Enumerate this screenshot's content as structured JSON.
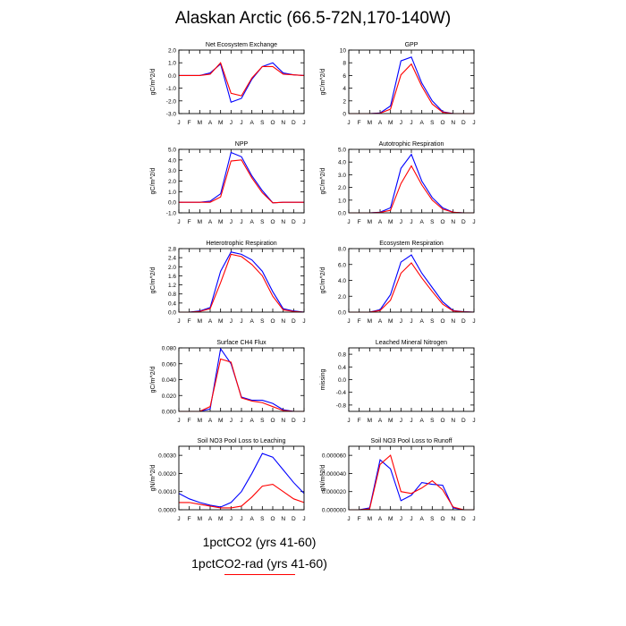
{
  "title": "Alaskan Arctic (66.5-72N,170-140W)",
  "months": [
    "J",
    "F",
    "M",
    "A",
    "M",
    "J",
    "J",
    "A",
    "S",
    "O",
    "N",
    "D",
    "J"
  ],
  "colors": {
    "series1": "#0000ff",
    "series2": "#ff0000"
  },
  "legend": [
    "1pctCO2 (yrs 41-60)",
    "1pctCO2-rad (yrs 41-60)"
  ],
  "chart_data": [
    {
      "type": "line",
      "title": "Net Ecosystem Exchange",
      "ylabel": "gC/m^2/d",
      "ylim": [
        -3.0,
        2.0
      ],
      "yticks": [
        2.0,
        1.0,
        0.0,
        -1.0,
        -2.0,
        -3.0
      ],
      "ytick_labels": [
        "2.0",
        "1.0",
        "0.0",
        "-1.0",
        "-2.0",
        "-3.0"
      ],
      "series": [
        {
          "name": "1pctCO2 (yrs 41-60)",
          "values": [
            0.0,
            0.0,
            0.0,
            0.2,
            0.9,
            -2.1,
            -1.8,
            -0.3,
            0.7,
            1.0,
            0.2,
            0.05,
            0.0
          ]
        },
        {
          "name": "1pctCO2-rad (yrs 41-60)",
          "values": [
            0.0,
            0.0,
            0.0,
            0.1,
            1.0,
            -1.4,
            -1.6,
            -0.2,
            0.7,
            0.7,
            0.1,
            0.05,
            0.0
          ]
        }
      ]
    },
    {
      "type": "line",
      "title": "GPP",
      "ylabel": "gC/m^2/d",
      "ylim": [
        0,
        10
      ],
      "yticks": [
        0,
        2,
        4,
        6,
        8,
        10
      ],
      "ytick_labels": [
        "0",
        "2",
        "4",
        "6",
        "8",
        "10"
      ],
      "series": [
        {
          "name": "1pctCO2 (yrs 41-60)",
          "values": [
            0,
            0,
            0,
            0.1,
            1.2,
            8.3,
            8.9,
            4.8,
            2.0,
            0.3,
            0,
            0,
            0
          ]
        },
        {
          "name": "1pctCO2-rad (yrs 41-60)",
          "values": [
            0,
            0,
            0,
            0.05,
            0.7,
            6.1,
            7.8,
            4.3,
            1.5,
            0.2,
            0,
            0,
            0
          ]
        }
      ]
    },
    {
      "type": "line",
      "title": "NPP",
      "ylabel": "gC/m^2/d",
      "ylim": [
        -1.0,
        5.0
      ],
      "yticks": [
        5.0,
        4.0,
        3.0,
        2.0,
        1.0,
        0.0,
        -1.0
      ],
      "ytick_labels": [
        "5.0",
        "4.0",
        "3.0",
        "2.0",
        "1.0",
        "0.0",
        "-1.0"
      ],
      "series": [
        {
          "name": "1pctCO2 (yrs 41-60)",
          "values": [
            0,
            0,
            0,
            0.1,
            0.8,
            4.7,
            4.3,
            2.5,
            1.1,
            -0.05,
            0,
            0,
            0
          ]
        },
        {
          "name": "1pctCO2-rad (yrs 41-60)",
          "values": [
            0,
            0,
            0,
            0.0,
            0.5,
            3.9,
            4.0,
            2.3,
            0.9,
            -0.05,
            0,
            0,
            0
          ]
        }
      ]
    },
    {
      "type": "line",
      "title": "Autotrophic Respiration",
      "ylabel": "gC/m^2/d",
      "ylim": [
        0,
        5.0
      ],
      "yticks": [
        0.0,
        1.0,
        2.0,
        3.0,
        4.0,
        5.0
      ],
      "ytick_labels": [
        "0.0",
        "1.0",
        "2.0",
        "3.0",
        "4.0",
        "5.0"
      ],
      "series": [
        {
          "name": "1pctCO2 (yrs 41-60)",
          "values": [
            0,
            0,
            0,
            0.05,
            0.4,
            3.5,
            4.6,
            2.5,
            1.2,
            0.4,
            0.05,
            0,
            0
          ]
        },
        {
          "name": "1pctCO2-rad (yrs 41-60)",
          "values": [
            0,
            0,
            0,
            0.03,
            0.2,
            2.3,
            3.7,
            2.2,
            1.0,
            0.3,
            0.05,
            0,
            0
          ]
        }
      ]
    },
    {
      "type": "line",
      "title": "Heterotrophic Respiration",
      "ylabel": "gC/m^2/d",
      "ylim": [
        0,
        2.8
      ],
      "yticks": [
        0.0,
        0.4,
        0.8,
        1.2,
        1.6,
        2.0,
        2.4,
        2.8
      ],
      "ytick_labels": [
        "0.0",
        "0.4",
        "0.8",
        "1.2",
        "1.6",
        "2.0",
        "2.4",
        "2.8"
      ],
      "series": [
        {
          "name": "1pctCO2 (yrs 41-60)",
          "values": [
            0.0,
            0.0,
            0.05,
            0.2,
            1.8,
            2.65,
            2.55,
            2.3,
            1.8,
            0.9,
            0.15,
            0.05,
            0.0
          ]
        },
        {
          "name": "1pctCO2-rad (yrs 41-60)",
          "values": [
            0.0,
            0.0,
            0.03,
            0.15,
            1.3,
            2.55,
            2.45,
            2.1,
            1.6,
            0.7,
            0.1,
            0.03,
            0.0
          ]
        }
      ]
    },
    {
      "type": "line",
      "title": "Ecosystem Respiration",
      "ylabel": "gC/m^2/d",
      "ylim": [
        0,
        8.0
      ],
      "yticks": [
        0.0,
        2.0,
        4.0,
        6.0,
        8.0
      ],
      "ytick_labels": [
        "0.0",
        "2.0",
        "4.0",
        "6.0",
        "8.0"
      ],
      "series": [
        {
          "name": "1pctCO2 (yrs 41-60)",
          "values": [
            0,
            0,
            0,
            0.3,
            2.2,
            6.3,
            7.2,
            4.9,
            3.1,
            1.3,
            0.2,
            0.05,
            0
          ]
        },
        {
          "name": "1pctCO2-rad (yrs 41-60)",
          "values": [
            0,
            0,
            0,
            0.2,
            1.5,
            4.9,
            6.2,
            4.3,
            2.6,
            1.0,
            0.15,
            0.03,
            0
          ]
        }
      ]
    },
    {
      "type": "line",
      "title": "Surface CH4 Flux",
      "ylabel": "gC/m^2/d",
      "ylim": [
        0,
        0.08
      ],
      "yticks": [
        0.0,
        0.02,
        0.04,
        0.06,
        0.08
      ],
      "ytick_labels": [
        "0.000",
        "0.020",
        "0.040",
        "0.060",
        "0.080"
      ],
      "series": [
        {
          "name": "1pctCO2 (yrs 41-60)",
          "values": [
            0,
            0,
            0,
            0.003,
            0.079,
            0.06,
            0.018,
            0.014,
            0.014,
            0.01,
            0.002,
            0,
            0
          ]
        },
        {
          "name": "1pctCO2-rad (yrs 41-60)",
          "values": [
            0,
            0,
            0,
            0.006,
            0.066,
            0.062,
            0.017,
            0.013,
            0.011,
            0.006,
            0.001,
            0,
            0
          ]
        }
      ]
    },
    {
      "type": "line",
      "title": "Leached Mineral Nitrogen",
      "ylabel": "missing",
      "ylim": [
        -1.0,
        1.0
      ],
      "yticks": [
        0.8,
        0.4,
        0.0,
        -0.4,
        -0.8
      ],
      "ytick_labels": [
        "0.8",
        "0.4",
        "0.0",
        "-0.4",
        "-0.8"
      ],
      "series": []
    },
    {
      "type": "line",
      "title": "Soil NO3 Pool Loss to Leaching",
      "ylabel": "gN/m^2/d",
      "ylim": [
        0,
        0.0035
      ],
      "yticks": [
        0.0,
        0.001,
        0.002,
        0.003
      ],
      "ytick_labels": [
        "0.0000",
        "0.0010",
        "0.0020",
        "0.0030"
      ],
      "series": [
        {
          "name": "1pctCO2 (yrs 41-60)",
          "values": [
            0.0009,
            0.0006,
            0.0004,
            0.00025,
            0.00015,
            0.0004,
            0.001,
            0.002,
            0.0031,
            0.0029,
            0.0022,
            0.0015,
            0.0009
          ]
        },
        {
          "name": "1pctCO2-rad (yrs 41-60)",
          "values": [
            0.0004,
            0.0004,
            0.0003,
            0.0002,
            0.0001,
            0.0001,
            0.0002,
            0.0007,
            0.0013,
            0.0014,
            0.001,
            0.0006,
            0.0004
          ]
        }
      ]
    },
    {
      "type": "line",
      "title": "Soil NO3 Pool Loss to Runoff",
      "ylabel": "gN/m^2/d",
      "ylim": [
        0,
        7e-05
      ],
      "yticks": [
        0.0,
        2e-05,
        4e-05,
        6e-05
      ],
      "ytick_labels": [
        "0.000000",
        "0.000020",
        "0.000040",
        "0.000060"
      ],
      "series": [
        {
          "name": "1pctCO2 (yrs 41-60)",
          "values": [
            0,
            0,
            2e-06,
            5.5e-05,
            4.5e-05,
            1e-05,
            1.6e-05,
            3e-05,
            2.8e-05,
            2.7e-05,
            2e-06,
            0,
            0
          ]
        },
        {
          "name": "1pctCO2-rad (yrs 41-60)",
          "values": [
            0,
            0,
            1e-06,
            5e-05,
            6e-05,
            2e-05,
            1.8e-05,
            2.4e-05,
            3.2e-05,
            2.2e-05,
            3e-06,
            0,
            0
          ]
        }
      ]
    }
  ]
}
